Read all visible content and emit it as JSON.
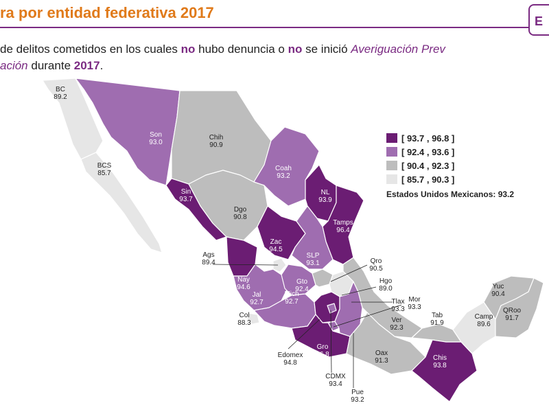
{
  "header": {
    "title": "ra por entidad federativa 2017",
    "corner_tag": "E"
  },
  "subtitle": {
    "line1_a": "de delitos cometidos en los cuales ",
    "line1_b": "no",
    "line1_c": " hubo denuncia o ",
    "line1_d": "no",
    "line1_e": " se inició ",
    "line1_f": "Averiguación Prev",
    "line2_a": "ación",
    "line2_b": " durante ",
    "line2_c": "2017",
    "line2_d": "."
  },
  "colors": {
    "dark": "#6b1d73",
    "medium": "#9f6db0",
    "light": "#bdbdbd",
    "lightest": "#e6e6e6",
    "title": "#e07a1a",
    "accent": "#7a2a82"
  },
  "legend": {
    "items": [
      {
        "label": "[ 93.7 , 96.8 ]",
        "color": "#6b1d73"
      },
      {
        "label": "[ 92.4 , 93.6 ]",
        "color": "#9f6db0"
      },
      {
        "label": "[ 90.4 , 92.3 ]",
        "color": "#bdbdbd"
      },
      {
        "label": "[ 85.7 , 90.3 ]",
        "color": "#e6e6e6"
      }
    ],
    "national": "Estados Unidos Mexicanos:  93.2"
  },
  "states": [
    {
      "code": "BC",
      "value": "89.2",
      "class": "lightest"
    },
    {
      "code": "BCS",
      "value": "85.7",
      "class": "lightest"
    },
    {
      "code": "Son",
      "value": "93.0",
      "class": "medium"
    },
    {
      "code": "Chih",
      "value": "90.9",
      "class": "light"
    },
    {
      "code": "Coah",
      "value": "93.2",
      "class": "medium"
    },
    {
      "code": "NL",
      "value": "93.9",
      "class": "dark"
    },
    {
      "code": "Tamps",
      "value": "96.4",
      "class": "dark"
    },
    {
      "code": "Sin",
      "value": "93.7",
      "class": "dark"
    },
    {
      "code": "Dgo",
      "value": "90.8",
      "class": "light"
    },
    {
      "code": "Zac",
      "value": "94.5",
      "class": "dark"
    },
    {
      "code": "SLP",
      "value": "93.1",
      "class": "medium"
    },
    {
      "code": "Ags",
      "value": "89.4",
      "class": "lightest"
    },
    {
      "code": "Nay",
      "value": "94.6",
      "class": "dark"
    },
    {
      "code": "Jal",
      "value": "92.7",
      "class": "medium"
    },
    {
      "code": "Gto",
      "value": "92.4",
      "class": "medium"
    },
    {
      "code": "Qro",
      "value": "90.5",
      "class": "light"
    },
    {
      "code": "Hgo",
      "value": "89.0",
      "class": "lightest"
    },
    {
      "code": "Col",
      "value": "88.3",
      "class": "lightest"
    },
    {
      "code": "Mich",
      "value": "92.7",
      "class": "medium"
    },
    {
      "code": "Edomex",
      "value": "94.8",
      "class": "dark"
    },
    {
      "code": "CDMX",
      "value": "93.4",
      "class": "medium"
    },
    {
      "code": "Mor",
      "value": "93.3",
      "class": "medium"
    },
    {
      "code": "Tlax",
      "value": "93.3",
      "class": "medium"
    },
    {
      "code": "Pue",
      "value": "93.2",
      "class": "medium"
    },
    {
      "code": "Gro",
      "value": "96.8",
      "class": "dark"
    },
    {
      "code": "Oax",
      "value": "91.3",
      "class": "light"
    },
    {
      "code": "Ver",
      "value": "92.3",
      "class": "light"
    },
    {
      "code": "Tab",
      "value": "91.9",
      "class": "light"
    },
    {
      "code": "Chis",
      "value": "93.8",
      "class": "dark"
    },
    {
      "code": "Camp",
      "value": "89.6",
      "class": "lightest"
    },
    {
      "code": "Yuc",
      "value": "90.4",
      "class": "light"
    },
    {
      "code": "QRoo",
      "value": "91.7",
      "class": "light"
    }
  ]
}
